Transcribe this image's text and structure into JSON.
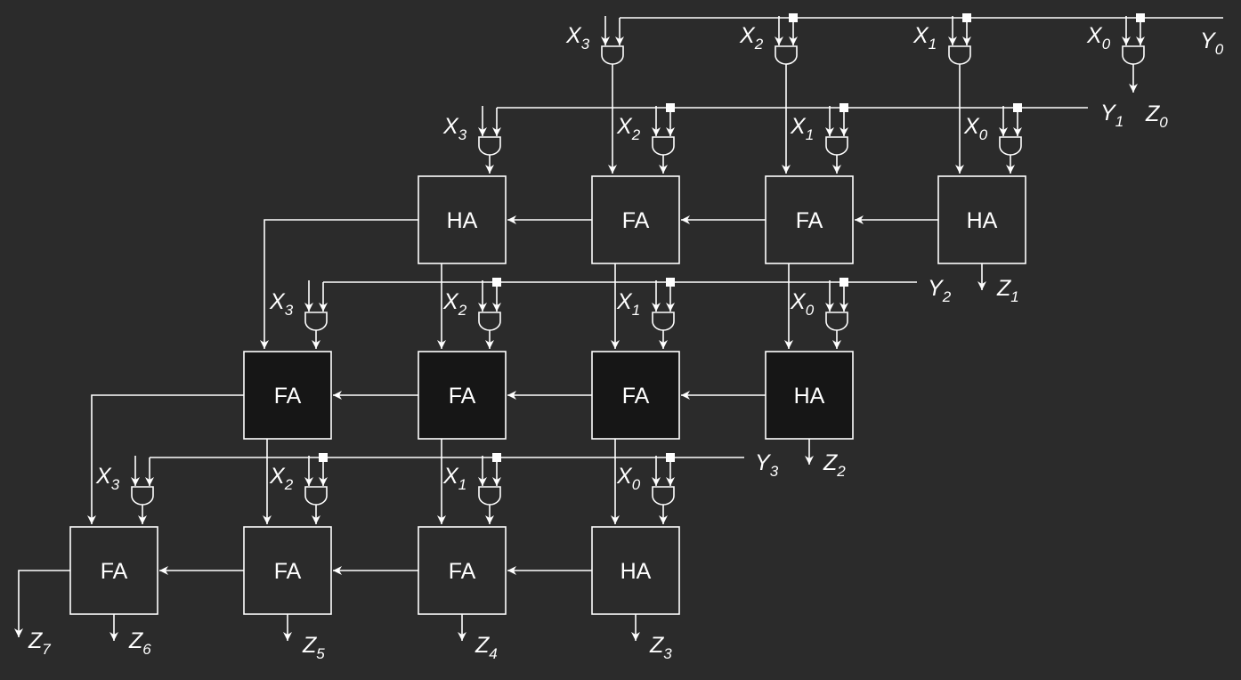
{
  "colors": {
    "background": "#2b2b2b",
    "stroke": "#ffffff",
    "cell_fill_light": "#2b2b2b",
    "cell_fill_dark": "#161616"
  },
  "rows": [
    {
      "y_label": {
        "base": "Y",
        "sub": "0"
      },
      "x_inputs": [
        {
          "base": "X",
          "sub": "3"
        },
        {
          "base": "X",
          "sub": "2"
        },
        {
          "base": "X",
          "sub": "1"
        },
        {
          "base": "X",
          "sub": "0"
        }
      ],
      "cells": [],
      "output": {
        "base": "Z",
        "sub": "0"
      }
    },
    {
      "y_label": {
        "base": "Y",
        "sub": "1"
      },
      "x_inputs": [
        {
          "base": "X",
          "sub": "3"
        },
        {
          "base": "X",
          "sub": "2"
        },
        {
          "base": "X",
          "sub": "1"
        },
        {
          "base": "X",
          "sub": "0"
        }
      ],
      "cells": [
        {
          "text": "HA",
          "shade": "light"
        },
        {
          "text": "FA",
          "shade": "light"
        },
        {
          "text": "FA",
          "shade": "light"
        },
        {
          "text": "HA",
          "shade": "light"
        }
      ],
      "output": {
        "base": "Z",
        "sub": "1"
      }
    },
    {
      "y_label": {
        "base": "Y",
        "sub": "2"
      },
      "x_inputs": [
        {
          "base": "X",
          "sub": "3"
        },
        {
          "base": "X",
          "sub": "2"
        },
        {
          "base": "X",
          "sub": "1"
        },
        {
          "base": "X",
          "sub": "0"
        }
      ],
      "cells": [
        {
          "text": "FA",
          "shade": "dark"
        },
        {
          "text": "FA",
          "shade": "dark"
        },
        {
          "text": "FA",
          "shade": "dark"
        },
        {
          "text": "HA",
          "shade": "dark"
        }
      ],
      "output": {
        "base": "Z",
        "sub": "2"
      }
    },
    {
      "y_label": {
        "base": "Y",
        "sub": "3"
      },
      "x_inputs": [
        {
          "base": "X",
          "sub": "3"
        },
        {
          "base": "X",
          "sub": "2"
        },
        {
          "base": "X",
          "sub": "1"
        },
        {
          "base": "X",
          "sub": "0"
        }
      ],
      "cells": [
        {
          "text": "FA",
          "shade": "light"
        },
        {
          "text": "FA",
          "shade": "light"
        },
        {
          "text": "FA",
          "shade": "light"
        },
        {
          "text": "HA",
          "shade": "light"
        }
      ],
      "output": null
    }
  ],
  "bottom_outputs": [
    {
      "base": "Z",
      "sub": "7"
    },
    {
      "base": "Z",
      "sub": "6"
    },
    {
      "base": "Z",
      "sub": "5"
    },
    {
      "base": "Z",
      "sub": "4"
    },
    {
      "base": "Z",
      "sub": "3"
    }
  ]
}
